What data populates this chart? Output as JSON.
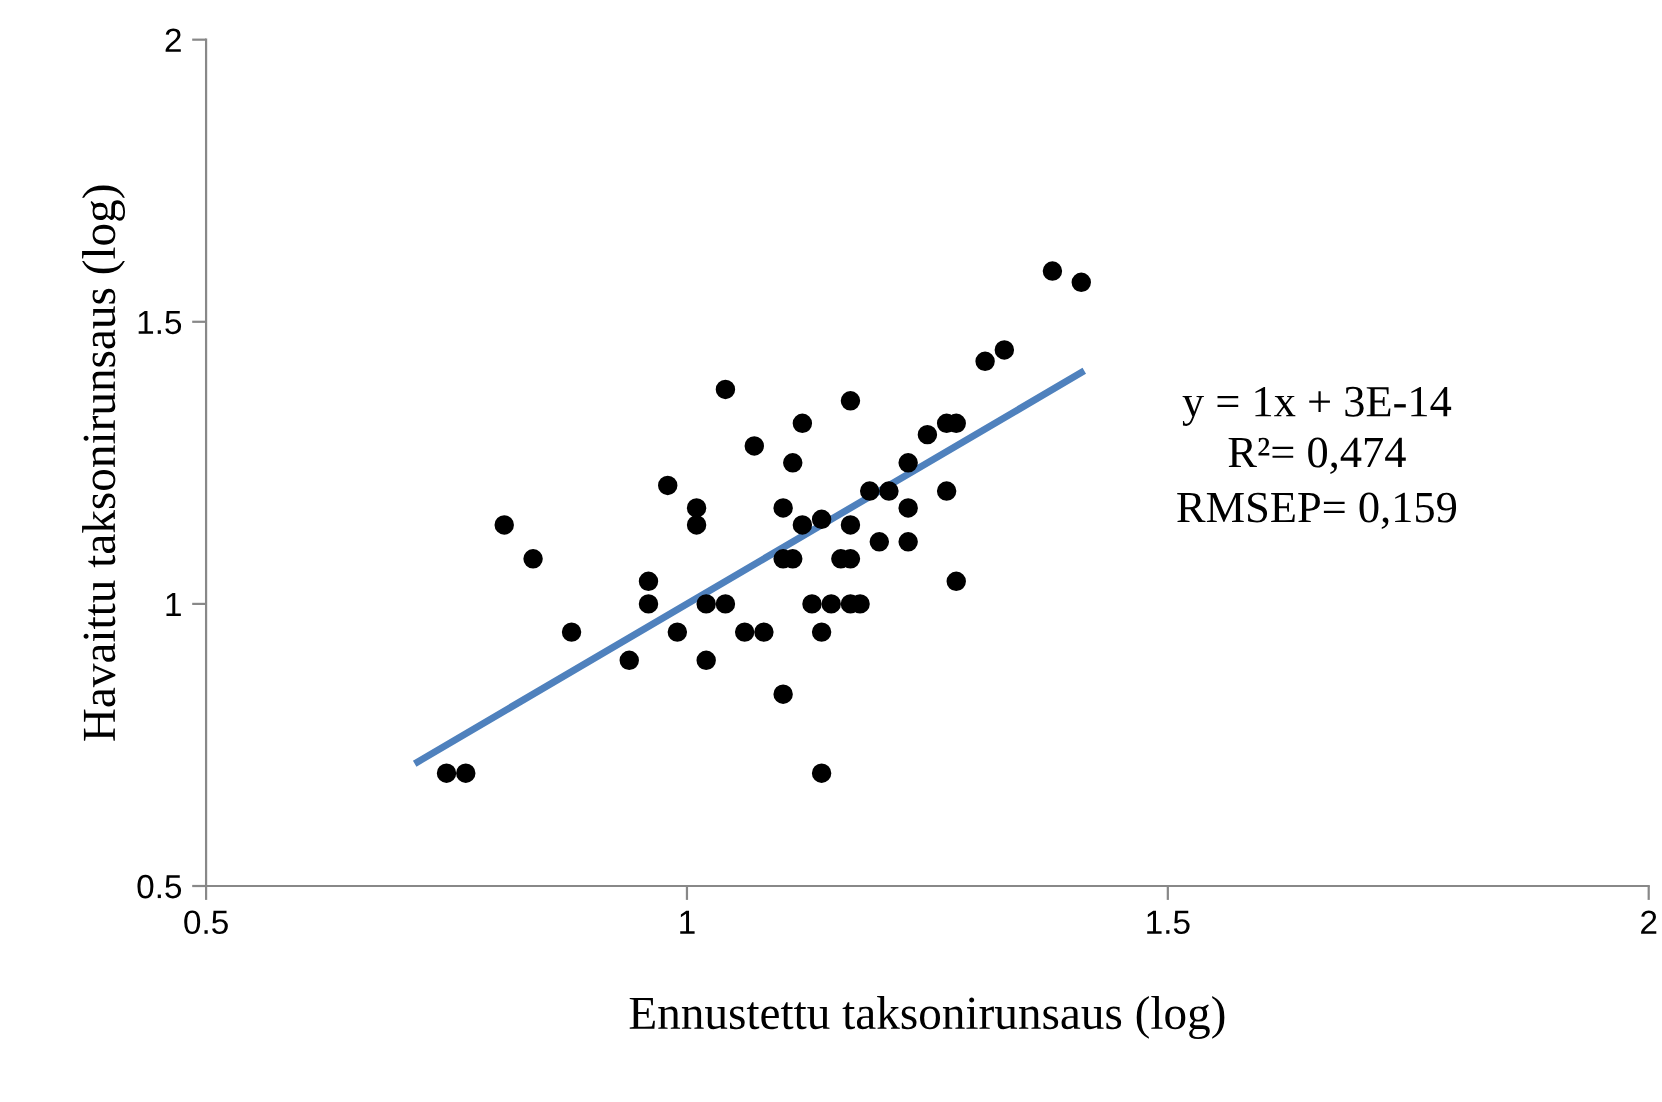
{
  "chart_data": {
    "type": "scatter",
    "xlabel": "Ennustettu taksonirunsaus (log)",
    "ylabel": "Havaittu taksonirunsaus (log)",
    "xlim": [
      0.5,
      2
    ],
    "ylim": [
      0.5,
      2
    ],
    "xticks": [
      0.5,
      1,
      1.5,
      2
    ],
    "yticks": [
      0.5,
      1,
      1.5,
      2
    ],
    "grid": false,
    "series": [
      {
        "color": "#000000",
        "marker": "circle",
        "x": [
          0.75,
          0.77,
          0.81,
          0.84,
          0.88,
          0.94,
          0.96,
          0.96,
          0.98,
          0.99,
          1.01,
          1.01,
          1.02,
          1.02,
          1.04,
          1.04,
          1.06,
          1.07,
          1.08,
          1.1,
          1.1,
          1.1,
          1.11,
          1.11,
          1.12,
          1.12,
          1.14,
          1.13,
          1.15,
          1.14,
          1.14,
          1.17,
          1.17,
          1.16,
          1.17,
          1.17,
          1.18,
          1.19,
          1.2,
          1.21,
          1.23,
          1.23,
          1.23,
          1.25,
          1.27,
          1.27,
          1.28,
          1.28,
          1.31,
          1.33,
          1.38,
          1.41
        ],
        "values": [
          0.7,
          0.7,
          1.14,
          1.08,
          0.95,
          0.9,
          1.04,
          1.0,
          1.21,
          0.95,
          1.17,
          1.14,
          0.9,
          1.0,
          1.38,
          1.0,
          0.95,
          1.28,
          0.95,
          1.17,
          0.84,
          1.08,
          1.08,
          1.25,
          1.32,
          1.14,
          1.15,
          1.0,
          1.0,
          0.95,
          0.7,
          1.14,
          1.36,
          1.08,
          1.08,
          1.0,
          1.0,
          1.2,
          1.11,
          1.2,
          1.17,
          1.25,
          1.11,
          1.3,
          1.2,
          1.32,
          1.32,
          1.04,
          1.43,
          1.45,
          1.59,
          1.57
        ]
      },
      {
        "type": "line",
        "color": "#4f81bd",
        "line_style": "solid",
        "marker": "none",
        "x": [
          0.72,
          1.41
        ],
        "values": [
          0.72,
          1.41
        ]
      }
    ],
    "annotations": [
      "y = 1x + 3E-14",
      "R²= 0,474",
      "RMSEP= 0,159"
    ]
  }
}
